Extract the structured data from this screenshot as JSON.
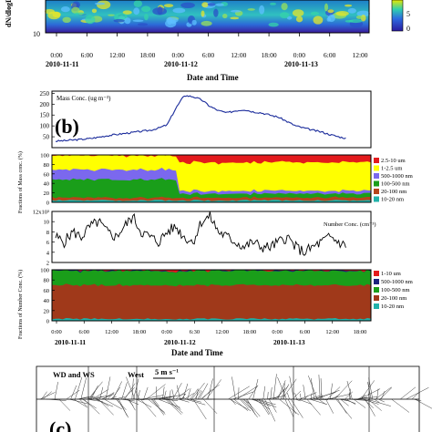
{
  "chart_data": [
    {
      "type": "heatmap",
      "panel": "a-top",
      "xlabel": "Date and Time",
      "ylabel": "dN/dlogDp",
      "x_ticks": [
        "0:00",
        "6:00",
        "12:00",
        "18:00",
        "0:00",
        "6:00",
        "12:00",
        "18:00",
        "0:00",
        "6:00",
        "12:00"
      ],
      "date_labels": [
        "2010-11-11",
        "2010-11-12",
        "2010-11-13"
      ],
      "y_ticks": [
        "10"
      ],
      "colorbar_ticks": [
        "5",
        "0"
      ]
    },
    {
      "type": "line",
      "panel": "b",
      "label": "(b)",
      "series_label": "Mass Conc. (ug m⁻³)",
      "y_ticks": [
        50,
        100,
        150,
        200,
        250
      ],
      "ylim": [
        0,
        260
      ],
      "x": [
        0,
        2,
        4,
        6,
        8,
        10,
        12,
        14,
        16,
        18,
        20,
        22,
        24,
        26,
        28,
        30,
        32,
        34,
        36,
        38,
        40,
        42,
        44,
        46,
        48,
        50,
        52,
        54,
        56,
        58,
        60,
        62,
        64,
        66,
        68
      ],
      "values": [
        30,
        32,
        35,
        38,
        42,
        48,
        55,
        60,
        65,
        70,
        75,
        80,
        90,
        105,
        180,
        240,
        235,
        220,
        190,
        170,
        160,
        170,
        175,
        165,
        160,
        150,
        140,
        120,
        100,
        90,
        80,
        72,
        60,
        50,
        42
      ]
    },
    {
      "type": "area",
      "panel": "b-mass-fractions",
      "ylabel": "Fractions of Mass conc. (%)",
      "y_ticks": [
        "0",
        "20",
        "40",
        "60",
        "80",
        "100"
      ],
      "ylim": [
        0,
        100
      ],
      "series": [
        {
          "name": "2.5-10 um",
          "color": "#e31a1c"
        },
        {
          "name": "1-2.5 um",
          "color": "#ffff00"
        },
        {
          "name": "500-1000 nm",
          "color": "#7b68ee"
        },
        {
          "name": "100-500 nm",
          "color": "#1a9e1a"
        },
        {
          "name": "20-100 nm",
          "color": "#b5451b"
        },
        {
          "name": "10-20 nm",
          "color": "#20b2aa"
        }
      ]
    },
    {
      "type": "line",
      "panel": "b-number",
      "series_label": "Number Conc. (cm⁻³)",
      "y_ticks": [
        "12x10³",
        "10",
        "8",
        "6",
        "4",
        "2"
      ],
      "ylim": [
        2,
        12
      ],
      "x": [
        0,
        2,
        4,
        6,
        8,
        10,
        12,
        14,
        16,
        18,
        20,
        22,
        24,
        26,
        28,
        30,
        32,
        34,
        36,
        38,
        40,
        42,
        44,
        46,
        48,
        50,
        52,
        54,
        56,
        58,
        60,
        62,
        64,
        66,
        68
      ],
      "values": [
        7,
        6,
        8,
        7,
        9,
        10,
        8,
        7,
        9,
        11,
        8,
        7,
        6,
        8,
        9,
        7,
        6,
        10,
        11,
        8,
        7,
        6,
        5,
        6,
        5,
        5,
        6,
        7,
        5,
        4,
        5,
        6,
        7,
        6,
        5
      ]
    },
    {
      "type": "area",
      "panel": "b-number-fractions",
      "ylabel": "Fractions of Number Conc. (%)",
      "y_ticks": [
        "0",
        "20",
        "40",
        "60",
        "80",
        "100"
      ],
      "ylim": [
        0,
        100
      ],
      "xlabel": "Date and Time",
      "x_ticks": [
        "0:00",
        "6:00",
        "12:00",
        "18:00",
        "0:00",
        "6:30",
        "12:00",
        "18:00",
        "0:00",
        "6:00",
        "12:00",
        "18:00"
      ],
      "date_labels": [
        "2010-11-11",
        "2010-11-12",
        "2010-11-13"
      ],
      "series": [
        {
          "name": "1-10 um",
          "color": "#e31a1c"
        },
        {
          "name": "500-1000 nm",
          "color": "#1a237e"
        },
        {
          "name": "100-500 nm",
          "color": "#1a9e1a"
        },
        {
          "name": "20-100 nm",
          "color": "#a0391a"
        },
        {
          "name": "10-20 nm",
          "color": "#20b2aa"
        }
      ]
    },
    {
      "type": "other",
      "panel": "c",
      "label": "(c)",
      "series_label": "WD and WS",
      "direction_label": "West",
      "scale_label": "5 m s⁻¹"
    }
  ]
}
